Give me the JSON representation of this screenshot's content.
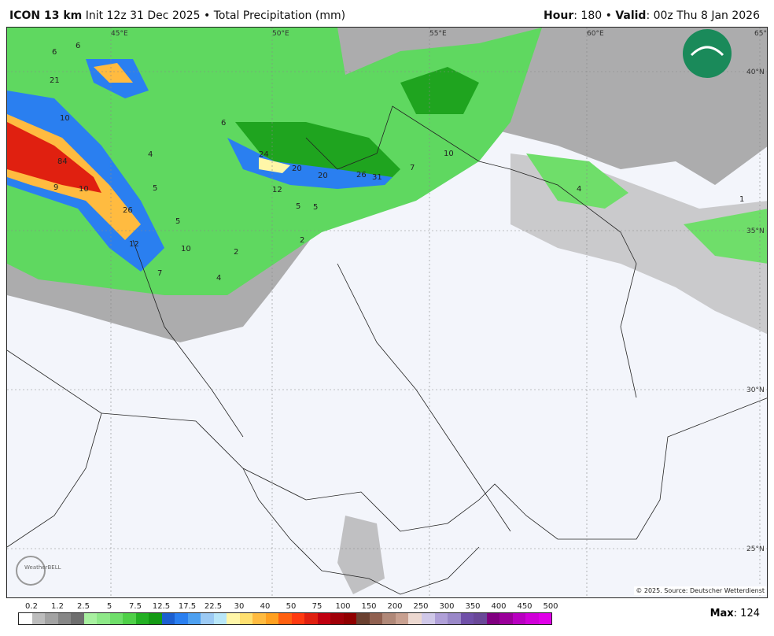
{
  "header": {
    "model": "ICON 13 km",
    "init": "Init 12z 31 Dec 2025",
    "sep": "•",
    "product": "Total Precipitation (mm)",
    "hour_label": "Hour",
    "hour": ": 180",
    "valid_label": "Valid",
    "valid": ": 00z Thu 8 Jan 2026"
  },
  "map": {
    "lon_labels": [
      "45°E",
      "50°E",
      "55°E",
      "60°E",
      "65°E"
    ],
    "lat_labels": [
      "40°N",
      "35°N",
      "30°N",
      "25°N"
    ],
    "contour_values": [
      "6",
      "6",
      "21",
      "10",
      "84",
      "9",
      "10",
      "26",
      "5",
      "12",
      "10",
      "4",
      "5",
      "6",
      "24",
      "20",
      "20",
      "26",
      "31",
      "7",
      "10",
      "12",
      "5",
      "2",
      "2",
      "4",
      "7",
      "4",
      "1",
      "5"
    ],
    "source": "© 2025. Source: Deutscher Wetterdienst",
    "logo": "WeatherBELL",
    "corner_logo": "Persian calligraphy logo"
  },
  "colorbar": {
    "labels": [
      "0.2",
      "1.2",
      "2.5",
      "5",
      "7.5",
      "12.5",
      "17.5",
      "22.5",
      "30",
      "40",
      "50",
      "75",
      "100",
      "150",
      "200",
      "250",
      "300",
      "350",
      "400",
      "450",
      "500"
    ],
    "colors": [
      "#ffffff",
      "#bdbdbd",
      "#a3a3a3",
      "#878787",
      "#6e6e6e",
      "#a8f0a0",
      "#8ee888",
      "#6fde6a",
      "#4fd048",
      "#23b023",
      "#149a14",
      "#1c5fd0",
      "#2a7ff0",
      "#4ea0f0",
      "#9ccaf4",
      "#b8e6f8",
      "#fff6a8",
      "#ffe070",
      "#ffbb40",
      "#ffa020",
      "#ff6010",
      "#ff3a10",
      "#e02010",
      "#c00010",
      "#a00008",
      "#900000",
      "#6a4030",
      "#906050",
      "#b08878",
      "#c8a090",
      "#ecd8d0",
      "#d0c8e8",
      "#b0a0d8",
      "#9a88c8",
      "#7050a8",
      "#6a4898",
      "#800080",
      "#9a009a",
      "#b800c0",
      "#d000d8",
      "#e000e8"
    ],
    "max_label": "Max",
    "max_value": ": 124"
  }
}
